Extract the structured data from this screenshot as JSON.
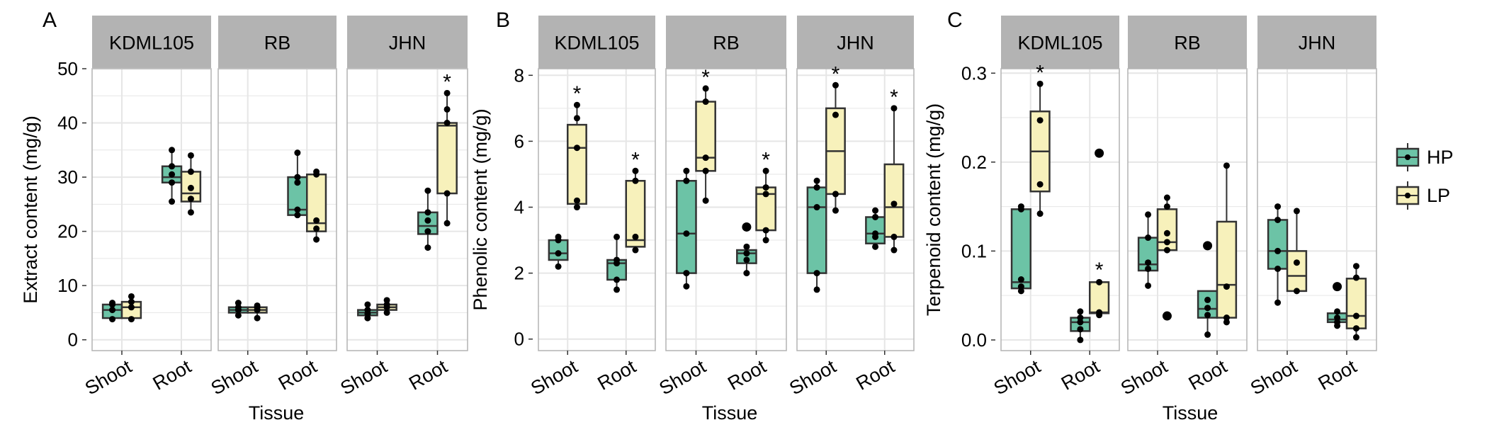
{
  "colors": {
    "HP": "#6cc3a6",
    "LP": "#f7f1bb",
    "strip": "#b3b3b3",
    "grid": "#e6e6e6",
    "panel_border": "#b3b3b3",
    "box_line": "#333333",
    "point": "#000000"
  },
  "legend": {
    "items": [
      {
        "key": "HP",
        "label": "HP"
      },
      {
        "key": "LP",
        "label": "LP"
      }
    ]
  },
  "chart_data": [
    {
      "type": "box",
      "panel_label": "A",
      "ylabel": "Extract content (mg/g)",
      "xlabel": "Tissue",
      "ylim": [
        -2,
        50
      ],
      "yticks": [
        0,
        10,
        20,
        30,
        40,
        50
      ],
      "facets": [
        "KDML105",
        "RB",
        "JHN"
      ],
      "categories": [
        "Shoot",
        "Root"
      ],
      "boxes": [
        {
          "facet": "KDML105",
          "tissue": "Shoot",
          "group": "HP",
          "q1": 4.0,
          "median": 5.5,
          "q3": 6.5,
          "whisker_low": 3.8,
          "whisker_high": 6.8,
          "points": [
            3.8,
            5.5,
            6.5,
            6.8
          ],
          "outliers": [],
          "sig": ""
        },
        {
          "facet": "KDML105",
          "tissue": "Shoot",
          "group": "LP",
          "q1": 4.0,
          "median": 6.0,
          "q3": 7.0,
          "whisker_low": 3.8,
          "whisker_high": 8.0,
          "points": [
            3.8,
            6.0,
            7.0,
            8.0
          ],
          "outliers": [],
          "sig": ""
        },
        {
          "facet": "KDML105",
          "tissue": "Root",
          "group": "HP",
          "q1": 29.0,
          "median": 30.0,
          "q3": 32.0,
          "whisker_low": 25.5,
          "whisker_high": 35.0,
          "points": [
            25.5,
            29.0,
            30.5,
            32.0,
            35.0
          ],
          "outliers": [],
          "sig": ""
        },
        {
          "facet": "KDML105",
          "tissue": "Root",
          "group": "LP",
          "q1": 25.5,
          "median": 27.0,
          "q3": 31.0,
          "whisker_low": 23.5,
          "whisker_high": 34.0,
          "points": [
            23.5,
            26.0,
            28.0,
            31.0,
            34.0
          ],
          "outliers": [],
          "sig": ""
        },
        {
          "facet": "RB",
          "tissue": "Shoot",
          "group": "HP",
          "q1": 5.0,
          "median": 5.5,
          "q3": 6.0,
          "whisker_low": 4.5,
          "whisker_high": 6.8,
          "points": [
            4.5,
            5.5,
            6.0,
            6.8
          ],
          "outliers": [],
          "sig": ""
        },
        {
          "facet": "RB",
          "tissue": "Shoot",
          "group": "LP",
          "q1": 5.0,
          "median": 5.5,
          "q3": 6.0,
          "whisker_low": 4.0,
          "whisker_high": 6.3,
          "points": [
            4.0,
            5.5,
            6.0,
            6.3
          ],
          "outliers": [],
          "sig": ""
        },
        {
          "facet": "RB",
          "tissue": "Root",
          "group": "HP",
          "q1": 23.0,
          "median": 24.0,
          "q3": 30.0,
          "whisker_low": 23.0,
          "whisker_high": 34.5,
          "points": [
            23.0,
            24.0,
            29.0,
            30.0,
            34.5
          ],
          "outliers": [],
          "sig": ""
        },
        {
          "facet": "RB",
          "tissue": "Root",
          "group": "LP",
          "q1": 20.0,
          "median": 21.5,
          "q3": 30.5,
          "whisker_low": 18.5,
          "whisker_high": 31.0,
          "points": [
            18.5,
            20.5,
            22.0,
            30.5,
            31.0
          ],
          "outliers": [],
          "sig": ""
        },
        {
          "facet": "JHN",
          "tissue": "Shoot",
          "group": "HP",
          "q1": 4.5,
          "median": 5.0,
          "q3": 5.5,
          "whisker_low": 4.0,
          "whisker_high": 6.5,
          "points": [
            4.0,
            4.8,
            5.5,
            6.5
          ],
          "outliers": [],
          "sig": ""
        },
        {
          "facet": "JHN",
          "tissue": "Shoot",
          "group": "LP",
          "q1": 5.5,
          "median": 6.0,
          "q3": 6.5,
          "whisker_low": 5.0,
          "whisker_high": 7.3,
          "points": [
            5.0,
            6.0,
            6.5,
            7.3
          ],
          "outliers": [],
          "sig": ""
        },
        {
          "facet": "JHN",
          "tissue": "Root",
          "group": "HP",
          "q1": 19.5,
          "median": 21.0,
          "q3": 23.5,
          "whisker_low": 17.0,
          "whisker_high": 27.5,
          "points": [
            17.0,
            20.0,
            22.0,
            23.5,
            27.5
          ],
          "outliers": [],
          "sig": ""
        },
        {
          "facet": "JHN",
          "tissue": "Root",
          "group": "LP",
          "q1": 27.0,
          "median": 39.5,
          "q3": 40.0,
          "whisker_low": 21.5,
          "whisker_high": 45.5,
          "points": [
            21.5,
            27.0,
            40.0,
            42.5,
            45.5
          ],
          "outliers": [],
          "sig": "*"
        }
      ]
    },
    {
      "type": "box",
      "panel_label": "B",
      "ylabel": "Phenolic content (mg/g)",
      "xlabel": "Tissue",
      "ylim": [
        -0.35,
        8.2
      ],
      "yticks": [
        0,
        2,
        4,
        6,
        8
      ],
      "facets": [
        "KDML105",
        "RB",
        "JHN"
      ],
      "categories": [
        "Shoot",
        "Root"
      ],
      "boxes": [
        {
          "facet": "KDML105",
          "tissue": "Shoot",
          "group": "HP",
          "q1": 2.4,
          "median": 2.6,
          "q3": 3.0,
          "whisker_low": 2.2,
          "whisker_high": 3.1,
          "points": [
            2.2,
            2.6,
            3.0,
            3.1
          ],
          "outliers": [],
          "sig": ""
        },
        {
          "facet": "KDML105",
          "tissue": "Shoot",
          "group": "LP",
          "q1": 4.1,
          "median": 5.8,
          "q3": 6.5,
          "whisker_low": 4.0,
          "whisker_high": 7.1,
          "points": [
            4.0,
            4.2,
            5.8,
            6.7,
            7.1
          ],
          "outliers": [],
          "sig": "*"
        },
        {
          "facet": "KDML105",
          "tissue": "Root",
          "group": "HP",
          "q1": 1.8,
          "median": 2.3,
          "q3": 2.4,
          "whisker_low": 1.5,
          "whisker_high": 3.1,
          "points": [
            1.5,
            1.8,
            2.3,
            2.4,
            3.1
          ],
          "outliers": [],
          "sig": ""
        },
        {
          "facet": "KDML105",
          "tissue": "Root",
          "group": "LP",
          "q1": 2.8,
          "median": 3.0,
          "q3": 4.8,
          "whisker_low": 2.7,
          "whisker_high": 5.1,
          "points": [
            2.7,
            3.1,
            4.8,
            5.1
          ],
          "outliers": [],
          "sig": "*"
        },
        {
          "facet": "RB",
          "tissue": "Shoot",
          "group": "HP",
          "q1": 2.0,
          "median": 3.2,
          "q3": 4.8,
          "whisker_low": 1.6,
          "whisker_high": 5.1,
          "points": [
            1.6,
            2.0,
            3.2,
            4.8,
            5.1
          ],
          "outliers": [],
          "sig": ""
        },
        {
          "facet": "RB",
          "tissue": "Shoot",
          "group": "LP",
          "q1": 5.1,
          "median": 5.5,
          "q3": 7.2,
          "whisker_low": 4.2,
          "whisker_high": 7.6,
          "points": [
            4.2,
            5.1,
            5.5,
            7.2,
            7.6
          ],
          "outliers": [],
          "sig": "*"
        },
        {
          "facet": "RB",
          "tissue": "Root",
          "group": "HP",
          "q1": 2.3,
          "median": 2.6,
          "q3": 2.7,
          "whisker_low": 2.0,
          "whisker_high": 2.8,
          "points": [
            2.0,
            2.4,
            2.6,
            2.8
          ],
          "outliers": [
            3.4
          ],
          "sig": ""
        },
        {
          "facet": "RB",
          "tissue": "Root",
          "group": "LP",
          "q1": 3.3,
          "median": 4.4,
          "q3": 4.6,
          "whisker_low": 3.0,
          "whisker_high": 5.1,
          "points": [
            3.0,
            3.3,
            4.4,
            4.6,
            5.1
          ],
          "outliers": [],
          "sig": "*"
        },
        {
          "facet": "JHN",
          "tissue": "Shoot",
          "group": "HP",
          "q1": 2.0,
          "median": 4.0,
          "q3": 4.6,
          "whisker_low": 1.5,
          "whisker_high": 4.8,
          "points": [
            1.5,
            2.0,
            4.0,
            4.6,
            4.8
          ],
          "outliers": [],
          "sig": ""
        },
        {
          "facet": "JHN",
          "tissue": "Shoot",
          "group": "LP",
          "q1": 4.4,
          "median": 5.7,
          "q3": 7.0,
          "whisker_low": 3.9,
          "whisker_high": 7.7,
          "points": [
            3.9,
            4.4,
            6.8,
            7.7
          ],
          "outliers": [],
          "sig": "*"
        },
        {
          "facet": "JHN",
          "tissue": "Root",
          "group": "HP",
          "q1": 2.9,
          "median": 3.2,
          "q3": 3.7,
          "whisker_low": 2.8,
          "whisker_high": 3.9,
          "points": [
            2.8,
            3.1,
            3.2,
            3.7,
            3.9
          ],
          "outliers": [],
          "sig": ""
        },
        {
          "facet": "JHN",
          "tissue": "Root",
          "group": "LP",
          "q1": 3.1,
          "median": 4.0,
          "q3": 5.3,
          "whisker_low": 2.7,
          "whisker_high": 7.0,
          "points": [
            2.7,
            3.1,
            4.1,
            7.0
          ],
          "outliers": [],
          "sig": "*"
        }
      ]
    },
    {
      "type": "box",
      "panel_label": "C",
      "ylabel": "Terpenoid content (mg/g)",
      "xlabel": "Tissue",
      "ylim": [
        -0.012,
        0.305
      ],
      "yticks": [
        0.0,
        0.1,
        0.2,
        0.3
      ],
      "ytick_labels": [
        "0.0",
        "0.1",
        "0.2",
        "0.3"
      ],
      "facets": [
        "KDML105",
        "RB",
        "JHN"
      ],
      "categories": [
        "Shoot",
        "Root"
      ],
      "boxes": [
        {
          "facet": "KDML105",
          "tissue": "Shoot",
          "group": "HP",
          "q1": 0.058,
          "median": 0.065,
          "q3": 0.147,
          "whisker_low": 0.055,
          "whisker_high": 0.15,
          "points": [
            0.055,
            0.06,
            0.068,
            0.147,
            0.15
          ],
          "outliers": [],
          "sig": ""
        },
        {
          "facet": "KDML105",
          "tissue": "Shoot",
          "group": "LP",
          "q1": 0.167,
          "median": 0.212,
          "q3": 0.257,
          "whisker_low": 0.142,
          "whisker_high": 0.288,
          "points": [
            0.142,
            0.175,
            0.247,
            0.288
          ],
          "outliers": [],
          "sig": "*"
        },
        {
          "facet": "KDML105",
          "tissue": "Root",
          "group": "HP",
          "q1": 0.01,
          "median": 0.02,
          "q3": 0.025,
          "whisker_low": 0.0,
          "whisker_high": 0.032,
          "points": [
            0.0,
            0.012,
            0.02,
            0.025,
            0.032
          ],
          "outliers": [],
          "sig": ""
        },
        {
          "facet": "KDML105",
          "tissue": "Root",
          "group": "LP",
          "q1": 0.03,
          "median": 0.031,
          "q3": 0.065,
          "whisker_low": 0.028,
          "whisker_high": 0.066,
          "points": [
            0.028,
            0.031,
            0.065
          ],
          "outliers": [
            0.21
          ],
          "sig": "*"
        },
        {
          "facet": "RB",
          "tissue": "Shoot",
          "group": "HP",
          "q1": 0.078,
          "median": 0.085,
          "q3": 0.115,
          "whisker_low": 0.061,
          "whisker_high": 0.141,
          "points": [
            0.061,
            0.08,
            0.087,
            0.115,
            0.141
          ],
          "outliers": [],
          "sig": ""
        },
        {
          "facet": "RB",
          "tissue": "Shoot",
          "group": "LP",
          "q1": 0.101,
          "median": 0.11,
          "q3": 0.147,
          "whisker_low": 0.101,
          "whisker_high": 0.16,
          "points": [
            0.101,
            0.11,
            0.12,
            0.15,
            0.16
          ],
          "outliers": [
            0.027
          ],
          "sig": ""
        },
        {
          "facet": "RB",
          "tissue": "Root",
          "group": "HP",
          "q1": 0.025,
          "median": 0.035,
          "q3": 0.055,
          "whisker_low": 0.006,
          "whisker_high": 0.055,
          "points": [
            0.006,
            0.028,
            0.036,
            0.045
          ],
          "outliers": [
            0.106
          ],
          "sig": ""
        },
        {
          "facet": "RB",
          "tissue": "Root",
          "group": "LP",
          "q1": 0.025,
          "median": 0.062,
          "q3": 0.133,
          "whisker_low": 0.02,
          "whisker_high": 0.196,
          "points": [
            0.02,
            0.025,
            0.06,
            0.196
          ],
          "outliers": [],
          "sig": ""
        },
        {
          "facet": "JHN",
          "tissue": "Shoot",
          "group": "HP",
          "q1": 0.08,
          "median": 0.1,
          "q3": 0.135,
          "whisker_low": 0.042,
          "whisker_high": 0.15,
          "points": [
            0.042,
            0.08,
            0.1,
            0.135,
            0.15
          ],
          "outliers": [],
          "sig": ""
        },
        {
          "facet": "JHN",
          "tissue": "Shoot",
          "group": "LP",
          "q1": 0.055,
          "median": 0.072,
          "q3": 0.1,
          "whisker_low": 0.055,
          "whisker_high": 0.145,
          "points": [
            0.055,
            0.087,
            0.145
          ],
          "outliers": [],
          "sig": ""
        },
        {
          "facet": "JHN",
          "tissue": "Root",
          "group": "HP",
          "q1": 0.02,
          "median": 0.023,
          "q3": 0.03,
          "whisker_low": 0.016,
          "whisker_high": 0.032,
          "points": [
            0.016,
            0.02,
            0.025,
            0.032
          ],
          "outliers": [
            0.06
          ],
          "sig": ""
        },
        {
          "facet": "JHN",
          "tissue": "Root",
          "group": "LP",
          "q1": 0.013,
          "median": 0.027,
          "q3": 0.069,
          "whisker_low": 0.003,
          "whisker_high": 0.083,
          "points": [
            0.003,
            0.013,
            0.027,
            0.07,
            0.083
          ],
          "outliers": [],
          "sig": ""
        }
      ]
    }
  ]
}
